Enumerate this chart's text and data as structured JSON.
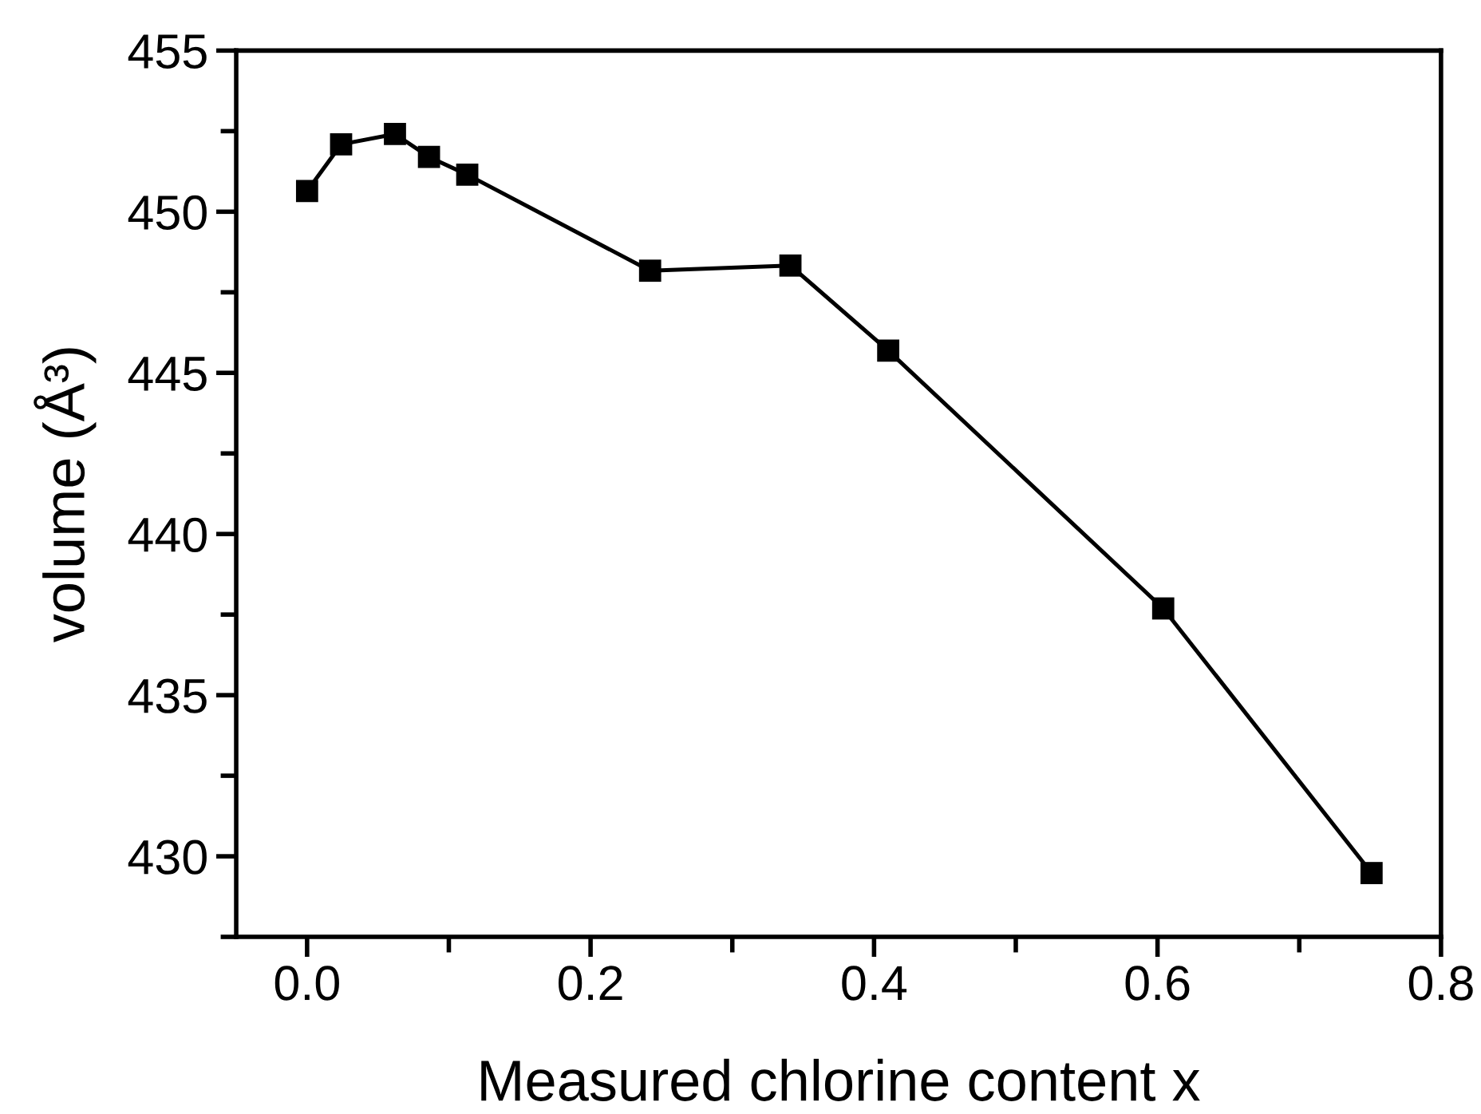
{
  "chart_data": {
    "type": "line",
    "xlabel": "Measured chlorine content x",
    "ylabel": "volume (Å³)",
    "x": [
      0.0,
      0.024,
      0.062,
      0.086,
      0.113,
      0.242,
      0.341,
      0.41,
      0.604,
      0.751
    ],
    "series": [
      {
        "color": "#000000",
        "values": [
          450.64,
          452.09,
          452.41,
          451.7,
          451.15,
          448.17,
          448.33,
          445.69,
          437.69,
          429.48
        ]
      }
    ],
    "xlim": [
      -0.05,
      0.8
    ],
    "xticks": [
      {
        "value": 0.0,
        "label": "0.0"
      },
      0.2,
      0.4,
      0.6,
      0.8
    ],
    "ylim": [
      427.5,
      455
    ],
    "yticks": [
      430,
      435,
      440,
      445,
      450,
      455
    ],
    "marker": "square",
    "line_style": "solid"
  }
}
